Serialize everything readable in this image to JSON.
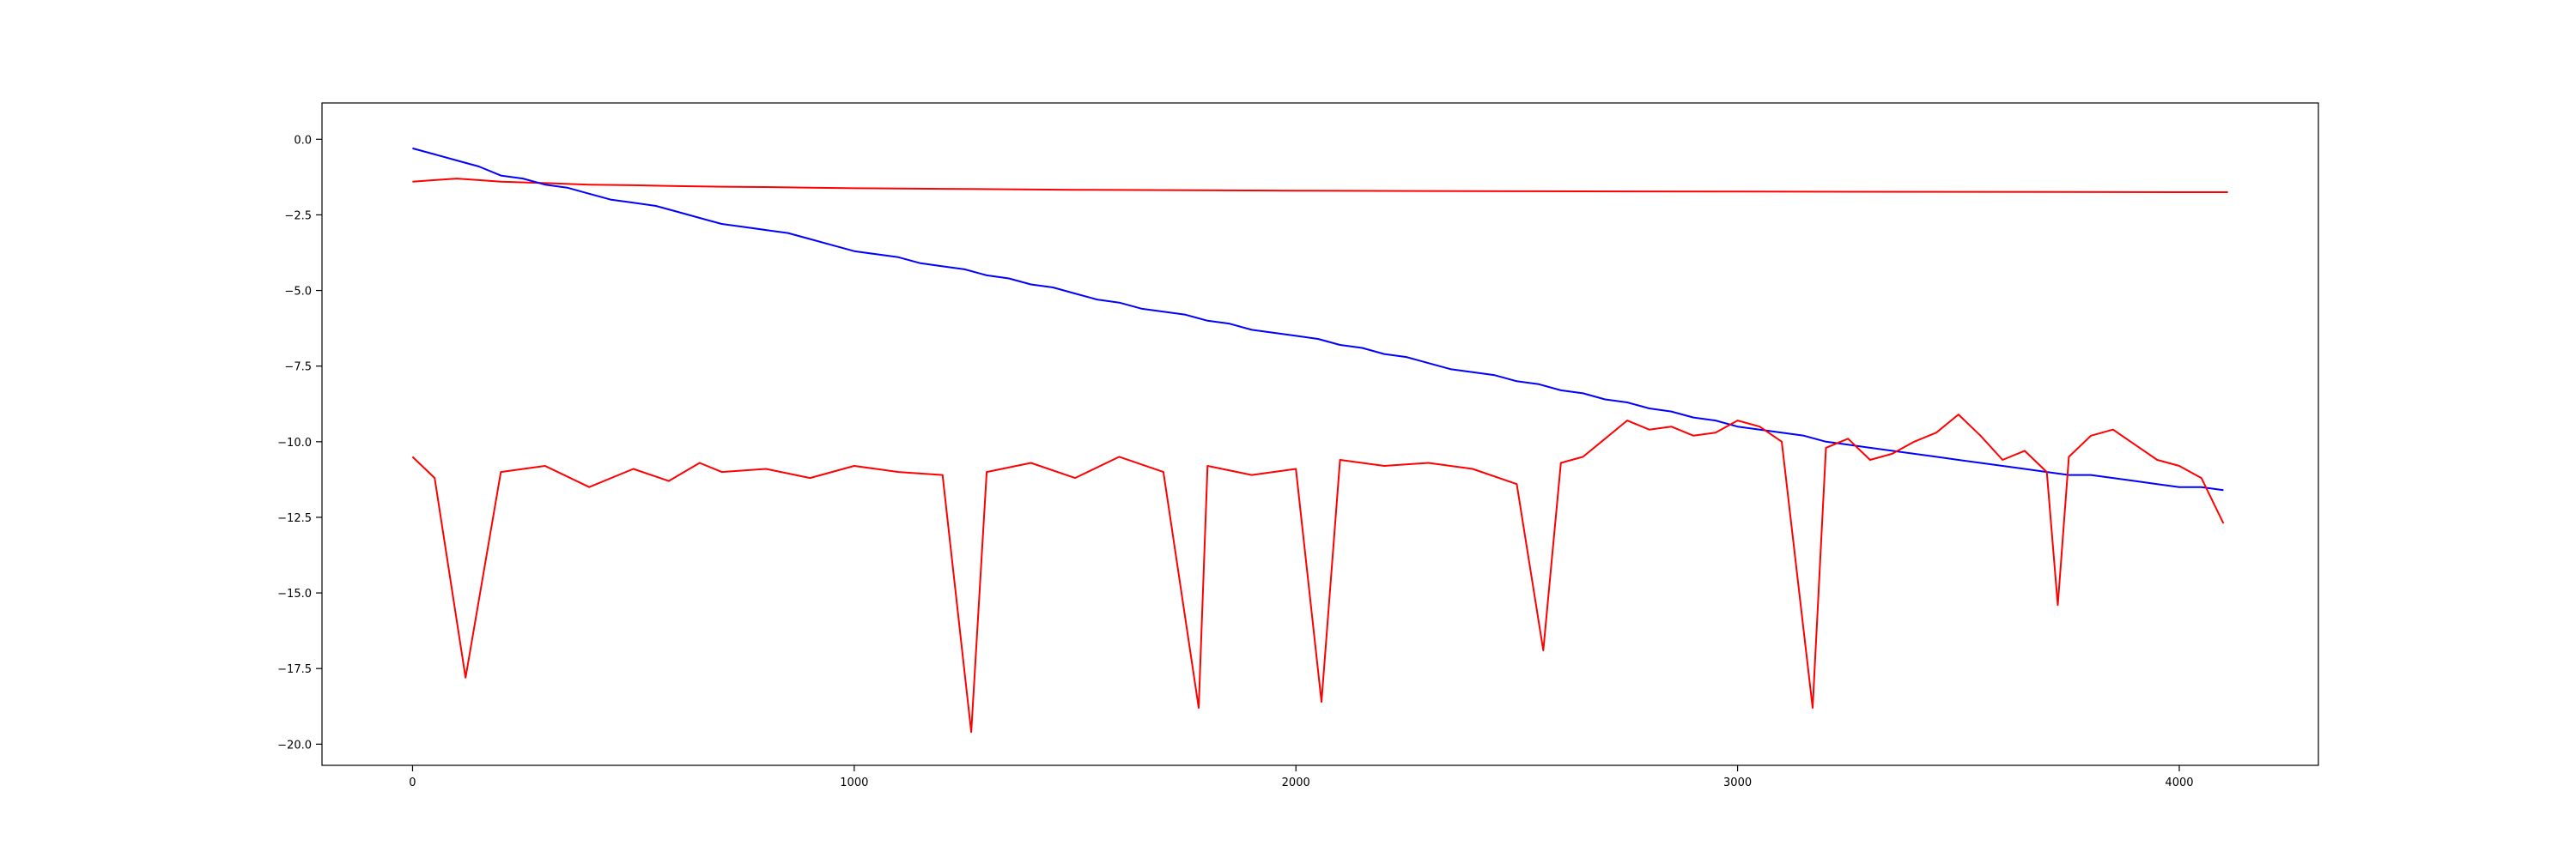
{
  "chart_data": {
    "type": "line",
    "title": "",
    "xlabel": "",
    "ylabel": "",
    "xlim": [
      -205,
      4315
    ],
    "ylim": [
      -20.7,
      1.2
    ],
    "xticks": [
      0,
      1000,
      2000,
      3000,
      4000
    ],
    "xtick_labels": [
      "0",
      "1000",
      "2000",
      "3000",
      "4000"
    ],
    "yticks": [
      0.0,
      -2.5,
      -5.0,
      -7.5,
      -10.0,
      -12.5,
      -15.0,
      -17.5,
      -20.0
    ],
    "ytick_labels": [
      "0.0",
      "−2.5",
      "−5.0",
      "−7.5",
      "−10.0",
      "−12.5",
      "−15.0",
      "−17.5",
      "−20.0"
    ],
    "grid": false,
    "legend": "none",
    "series": [
      {
        "color": "#ff0000",
        "x": [
          0,
          50,
          100,
          150,
          200,
          300,
          400,
          500,
          600,
          700,
          800,
          900,
          1000,
          1200,
          1500,
          2000,
          2500,
          3000,
          3500,
          4000,
          4110
        ],
        "y": [
          -1.4,
          -1.35,
          -1.3,
          -1.35,
          -1.4,
          -1.45,
          -1.5,
          -1.52,
          -1.55,
          -1.57,
          -1.58,
          -1.6,
          -1.62,
          -1.64,
          -1.67,
          -1.7,
          -1.72,
          -1.73,
          -1.74,
          -1.75,
          -1.75
        ]
      },
      {
        "color": "#0000ff",
        "x": [
          0,
          50,
          100,
          150,
          200,
          250,
          300,
          350,
          400,
          450,
          500,
          550,
          600,
          650,
          700,
          750,
          800,
          850,
          900,
          950,
          1000,
          1050,
          1100,
          1150,
          1200,
          1250,
          1300,
          1350,
          1400,
          1450,
          1500,
          1550,
          1600,
          1650,
          1700,
          1750,
          1800,
          1850,
          1900,
          1950,
          2000,
          2050,
          2100,
          2150,
          2200,
          2250,
          2300,
          2350,
          2400,
          2450,
          2500,
          2550,
          2600,
          2650,
          2700,
          2750,
          2800,
          2850,
          2900,
          2950,
          3000,
          3050,
          3100,
          3150,
          3200,
          3250,
          3300,
          3350,
          3400,
          3450,
          3500,
          3550,
          3600,
          3650,
          3700,
          3750,
          3800,
          3850,
          3900,
          3950,
          4000,
          4050,
          4100
        ],
        "y": [
          -0.3,
          -0.5,
          -0.7,
          -0.9,
          -1.2,
          -1.3,
          -1.5,
          -1.6,
          -1.8,
          -2.0,
          -2.1,
          -2.2,
          -2.4,
          -2.6,
          -2.8,
          -2.9,
          -3.0,
          -3.1,
          -3.3,
          -3.5,
          -3.7,
          -3.8,
          -3.9,
          -4.1,
          -4.2,
          -4.3,
          -4.5,
          -4.6,
          -4.8,
          -4.9,
          -5.1,
          -5.3,
          -5.4,
          -5.6,
          -5.7,
          -5.8,
          -6.0,
          -6.1,
          -6.3,
          -6.4,
          -6.5,
          -6.6,
          -6.8,
          -6.9,
          -7.1,
          -7.2,
          -7.4,
          -7.6,
          -7.7,
          -7.8,
          -8.0,
          -8.1,
          -8.3,
          -8.4,
          -8.6,
          -8.7,
          -8.9,
          -9.0,
          -9.2,
          -9.3,
          -9.5,
          -9.6,
          -9.7,
          -9.8,
          -10.0,
          -10.1,
          -10.2,
          -10.3,
          -10.4,
          -10.5,
          -10.6,
          -10.7,
          -10.8,
          -10.9,
          -11.0,
          -11.1,
          -11.1,
          -11.2,
          -11.3,
          -11.4,
          -11.5,
          -11.5,
          -11.6
        ]
      },
      {
        "color": "#ff0000",
        "x": [
          0,
          50,
          120,
          200,
          300,
          400,
          500,
          580,
          650,
          700,
          800,
          900,
          1000,
          1100,
          1200,
          1265,
          1300,
          1400,
          1500,
          1600,
          1700,
          1780,
          1800,
          1900,
          2000,
          2058,
          2100,
          2200,
          2300,
          2400,
          2500,
          2560,
          2600,
          2650,
          2700,
          2750,
          2800,
          2850,
          2900,
          2950,
          3000,
          3050,
          3100,
          3170,
          3200,
          3250,
          3300,
          3350,
          3400,
          3450,
          3500,
          3550,
          3600,
          3650,
          3700,
          3725,
          3750,
          3800,
          3850,
          3900,
          3950,
          4000,
          4050,
          4100
        ],
        "y": [
          -10.5,
          -11.2,
          -17.8,
          -11.0,
          -10.8,
          -11.5,
          -10.9,
          -11.3,
          -10.7,
          -11.0,
          -10.9,
          -11.2,
          -10.8,
          -11.0,
          -11.1,
          -19.6,
          -11.0,
          -10.7,
          -11.2,
          -10.5,
          -11.0,
          -18.8,
          -10.8,
          -11.1,
          -10.9,
          -18.6,
          -10.6,
          -10.8,
          -10.7,
          -10.9,
          -11.4,
          -16.9,
          -10.7,
          -10.5,
          -9.9,
          -9.3,
          -9.6,
          -9.5,
          -9.8,
          -9.7,
          -9.3,
          -9.5,
          -10.0,
          -18.8,
          -10.2,
          -9.9,
          -10.6,
          -10.4,
          -10.0,
          -9.7,
          -9.1,
          -9.8,
          -10.6,
          -10.3,
          -11.0,
          -15.4,
          -10.5,
          -9.8,
          -9.6,
          -10.1,
          -10.6,
          -10.8,
          -11.2,
          -12.7
        ]
      }
    ]
  }
}
